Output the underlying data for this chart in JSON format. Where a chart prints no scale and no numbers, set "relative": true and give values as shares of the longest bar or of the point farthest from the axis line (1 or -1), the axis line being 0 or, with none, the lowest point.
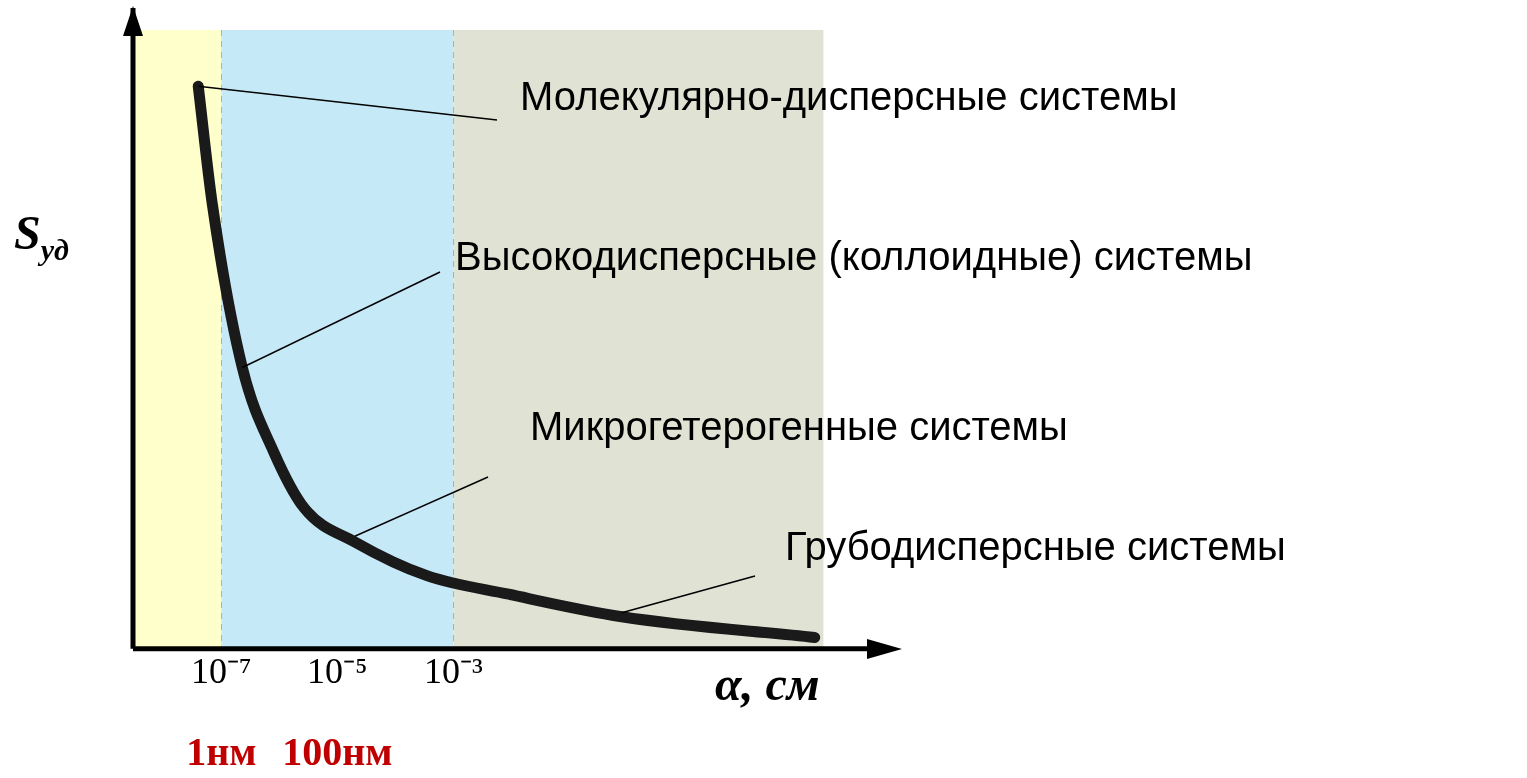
{
  "chart_data": {
    "type": "line",
    "relative": true,
    "xlabel": "α, см",
    "ylabel": "S$_{уд}$",
    "log": "x",
    "xlim": [
      3e-09,
      30000
    ],
    "xticks": [
      {
        "value": 1e-07,
        "label": "10⁻⁷"
      },
      {
        "value": 1e-05,
        "label": "10⁻⁵"
      },
      {
        "value": 0.001,
        "label": "10⁻³"
      }
    ],
    "grid": "x",
    "legend": false,
    "marker": "none",
    "line_style": "solid",
    "series": [
      {
        "color": "#1a1a1a",
        "x": [
          4e-08,
          7e-08,
          2.3e-07,
          8e-07,
          2.7e-06,
          2e-05,
          0.00035,
          0.009,
          0.8,
          1700
        ],
        "values": [
          1.0,
          0.79,
          0.5,
          0.35,
          0.25,
          0.19,
          0.13,
          0.097,
          0.057,
          0.02
        ]
      }
    ],
    "bands": [
      {
        "axis": "x",
        "from": 3e-09,
        "to": 1e-07,
        "color": "#ffffcc"
      },
      {
        "axis": "x",
        "from": 1e-07,
        "to": 0.001,
        "color": "#c6e9f8"
      },
      {
        "axis": "x",
        "from": 0.001,
        "to": 2400,
        "color": "#e0e3d4"
      }
    ],
    "annotations": [
      {
        "text": "Молекулярно-дисперсные системы",
        "x": 4e-08,
        "y": 1.0
      },
      {
        "text": "Высокодисперсные (коллоидные) системы",
        "x": 2.3e-07,
        "y": 0.5
      },
      {
        "text": "Микрогетерогенные системы",
        "x": 2e-05,
        "y": 0.2
      },
      {
        "text": "Грубодисперсные системы",
        "x": 0.8,
        "y": 0.064
      },
      "1нм",
      "100нм"
    ]
  }
}
